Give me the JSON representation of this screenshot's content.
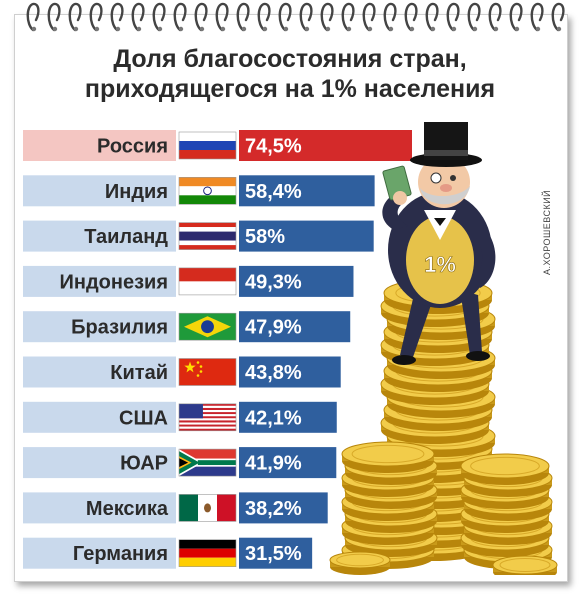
{
  "chart_data": {
    "type": "bar",
    "title": [
      "Доля благосостояния стран,",
      "приходящегося на 1% населения"
    ],
    "categories": [
      "Россия",
      "Индия",
      "Таиланд",
      "Индонезия",
      "Бразилия",
      "Китай",
      "США",
      "ЮАР",
      "Мексика",
      "Германия"
    ],
    "values": [
      74.5,
      58.4,
      58,
      49.3,
      47.9,
      43.8,
      42.1,
      41.9,
      38.2,
      31.5
    ],
    "value_labels": [
      "74,5%",
      "58,4%",
      "58%",
      "49,3%",
      "47,9%",
      "43,8%",
      "42,1%",
      "41,9%",
      "38,2%",
      "31,5%"
    ],
    "flags": [
      "russia-flag",
      "india-flag",
      "thailand-flag",
      "indonesia-flag",
      "brazil-flag",
      "china-flag",
      "usa-flag",
      "south-africa-flag",
      "mexico-flag",
      "germany-flag"
    ],
    "highlight_index": 0,
    "colors": {
      "bar": "#2f5f9e",
      "bar_highlight": "#d42a2a",
      "label_bg": "#c9d9ec",
      "label_bg_highlight": "#f4c6c2",
      "value_text": "#ffffff",
      "label_text": "#2b2b2b"
    }
  },
  "illustration": {
    "badge": "1%",
    "credit": "А.ХОРОШЕВСКИЙ"
  }
}
